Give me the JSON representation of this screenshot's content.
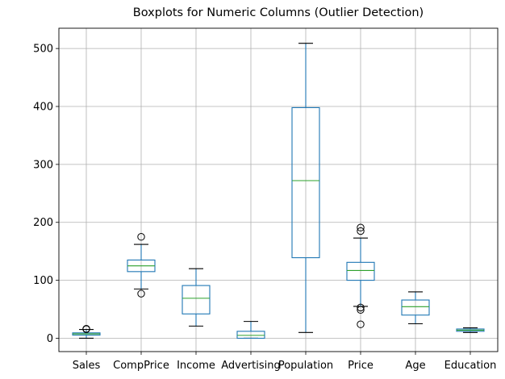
{
  "chart_data": {
    "type": "boxplot",
    "title": "Boxplots for Numeric Columns (Outlier Detection)",
    "xlabel": "",
    "ylabel": "",
    "ylim": [
      -23,
      535
    ],
    "yticks": [
      0,
      100,
      200,
      300,
      400,
      500
    ],
    "grid": true,
    "categories": [
      "Sales",
      "CompPrice",
      "Income",
      "Advertising",
      "Population",
      "Price",
      "Age",
      "Education"
    ],
    "series": [
      {
        "category": "Sales",
        "whisker_low": 0,
        "q1": 5.4,
        "median": 7.5,
        "q3": 9.3,
        "whisker_high": 15.2,
        "outliers": [
          16.3,
          15.6
        ]
      },
      {
        "category": "CompPrice",
        "whisker_low": 85,
        "q1": 115,
        "median": 125,
        "q3": 135,
        "whisker_high": 162,
        "outliers": [
          77,
          175
        ]
      },
      {
        "category": "Income",
        "whisker_low": 21,
        "q1": 42,
        "median": 69,
        "q3": 91,
        "whisker_high": 120,
        "outliers": []
      },
      {
        "category": "Advertising",
        "whisker_low": 0,
        "q1": 0,
        "median": 5,
        "q3": 12,
        "whisker_high": 29,
        "outliers": []
      },
      {
        "category": "Population",
        "whisker_low": 10,
        "q1": 139,
        "median": 272,
        "q3": 398,
        "whisker_high": 509,
        "outliers": []
      },
      {
        "category": "Price",
        "whisker_low": 55,
        "q1": 100,
        "median": 117,
        "q3": 131,
        "whisker_high": 173,
        "outliers": [
          24,
          49,
          53,
          185,
          191
        ]
      },
      {
        "category": "Age",
        "whisker_low": 25,
        "q1": 40,
        "median": 54.5,
        "q3": 66,
        "whisker_high": 80,
        "outliers": []
      },
      {
        "category": "Education",
        "whisker_low": 10,
        "q1": 12,
        "median": 14,
        "q3": 16,
        "whisker_high": 18,
        "outliers": []
      }
    ],
    "colors": {
      "box": "#1f77b4",
      "median": "#2ca02c",
      "grid": "#b0b0b0",
      "whisker_cap": "#000000",
      "outlier": "#000000"
    }
  }
}
